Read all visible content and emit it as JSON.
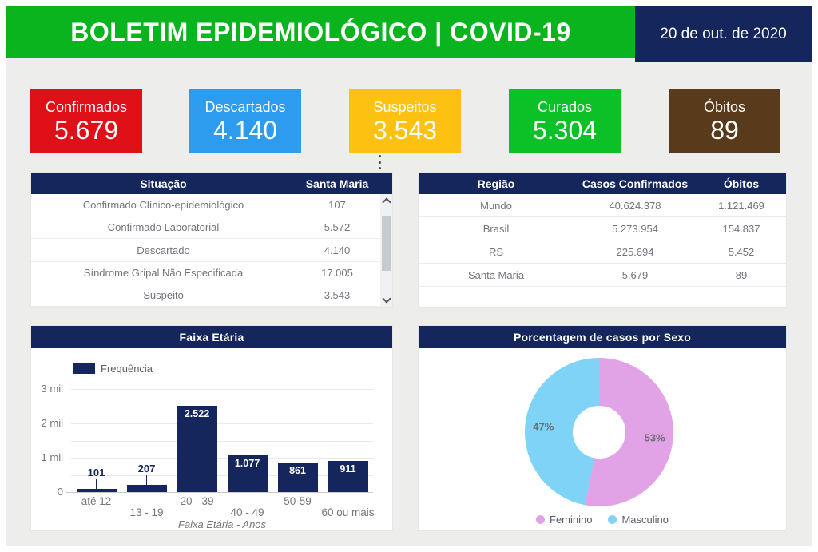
{
  "header": {
    "title": "BOLETIM EPIDEMIOLÓGICO | COVID-19",
    "date": "20 de out. de 2020",
    "banner_color": "#0AB41E",
    "date_color": "#15265C"
  },
  "cards": [
    {
      "label": "Confirmados",
      "value": "5.679",
      "color": "#E01019"
    },
    {
      "label": "Descartados",
      "value": "4.140",
      "color": "#2D9BEE"
    },
    {
      "label": "Suspeitos",
      "value": "3.543",
      "color": "#FDC112"
    },
    {
      "label": "Curados",
      "value": "5.304",
      "color": "#0CC127"
    },
    {
      "label": "Óbitos",
      "value": "89",
      "color": "#593A1B"
    }
  ],
  "situacao_table": {
    "headers": [
      "Situação",
      "Santa Maria"
    ],
    "rows": [
      [
        "Confirmado Clínico-epidemiológico",
        "107"
      ],
      [
        "Confirmado Laboratorial",
        "5.572"
      ],
      [
        "Descartado",
        "4.140"
      ],
      [
        "Síndrome Gripal Não Especificada",
        "17.005"
      ],
      [
        "Suspeito",
        "3.543"
      ]
    ]
  },
  "regiao_table": {
    "headers": [
      "Região",
      "Casos Confirmados",
      "Óbitos"
    ],
    "rows": [
      [
        "Mundo",
        "40.624.378",
        "1.121.469"
      ],
      [
        "Brasil",
        "5.273.954",
        "154.837"
      ],
      [
        "RS",
        "225.694",
        "5.452"
      ],
      [
        "Santa Maria",
        "5.679",
        "89"
      ]
    ]
  },
  "chart_data": [
    {
      "type": "bar",
      "title": "Faixa Etária",
      "legend": [
        "Frequência"
      ],
      "categories": [
        "até 12",
        "13 - 19",
        "20 - 39",
        "40 - 49",
        "50-59",
        "60 ou mais"
      ],
      "values": [
        101,
        207,
        2522,
        1077,
        861,
        911
      ],
      "value_labels": [
        "101",
        "207",
        "2.522",
        "1.077",
        "861",
        "911"
      ],
      "xlabel": "Faixa Etária - Anos",
      "ylabel": "",
      "ylim": [
        0,
        3000
      ],
      "grid_step": 500,
      "yticks": [
        {
          "value": 0,
          "label": "0"
        },
        {
          "value": 1000,
          "label": "1 mil"
        },
        {
          "value": 2000,
          "label": "2 mil"
        },
        {
          "value": 3000,
          "label": "3 mil"
        }
      ],
      "bar_color": "#15265C",
      "grid": true,
      "legend_position": "top-left"
    },
    {
      "type": "pie",
      "title": "Porcentagem de casos por Sexo",
      "donut": true,
      "slices": [
        {
          "label": "Feminino",
          "pct": 53,
          "display": "53%",
          "color": "#E2A2E6"
        },
        {
          "label": "Masculino",
          "pct": 47,
          "display": "47%",
          "color": "#7FD3F7"
        }
      ],
      "legend_position": "bottom"
    }
  ]
}
